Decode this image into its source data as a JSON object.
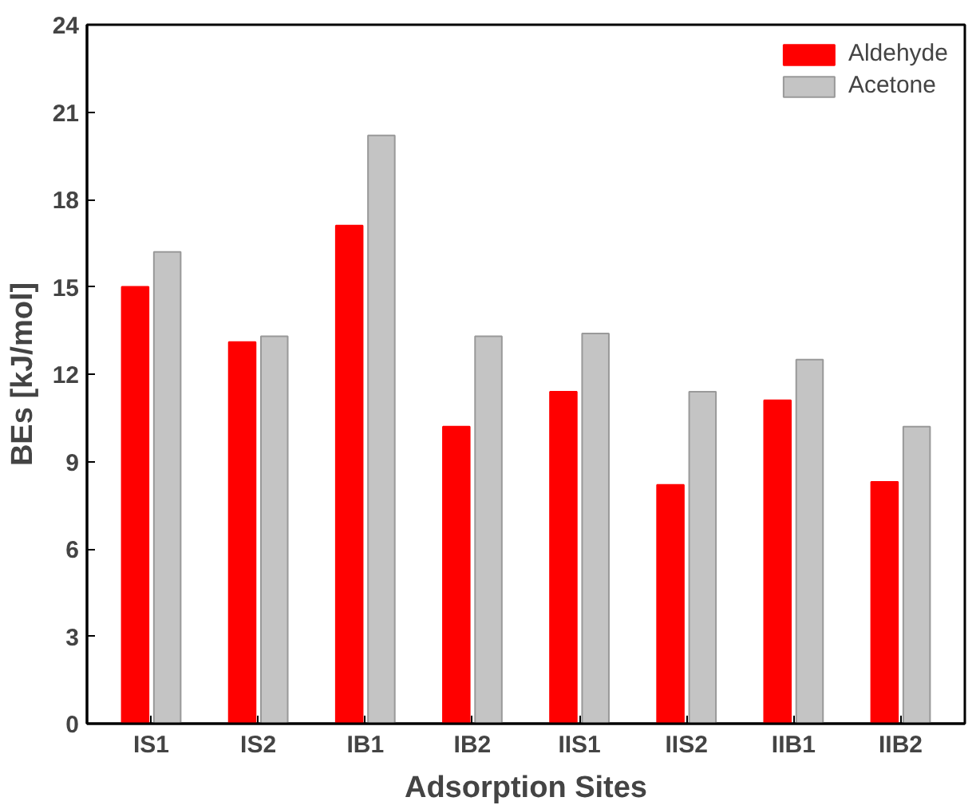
{
  "chart_data": {
    "type": "bar",
    "xlabel": "Adsorption Sites",
    "ylabel": "BEs [kJ/mol]",
    "categories": [
      "IS1",
      "IS2",
      "IB1",
      "IB2",
      "IIS1",
      "IIS2",
      "IIB1",
      "IIB2"
    ],
    "series": [
      {
        "name": "Aldehyde",
        "color": "#ff0000",
        "values": [
          15.0,
          13.1,
          17.1,
          10.2,
          11.4,
          8.2,
          11.1,
          8.3
        ]
      },
      {
        "name": "Acetone",
        "color": "#c4c4c4",
        "values": [
          16.2,
          13.3,
          20.2,
          13.3,
          13.4,
          11.4,
          12.5,
          10.2
        ]
      }
    ],
    "ylim": [
      0,
      24
    ],
    "yticks": [
      0,
      3,
      6,
      9,
      12,
      15,
      18,
      21,
      24
    ],
    "grid": false,
    "legend": "top right"
  }
}
